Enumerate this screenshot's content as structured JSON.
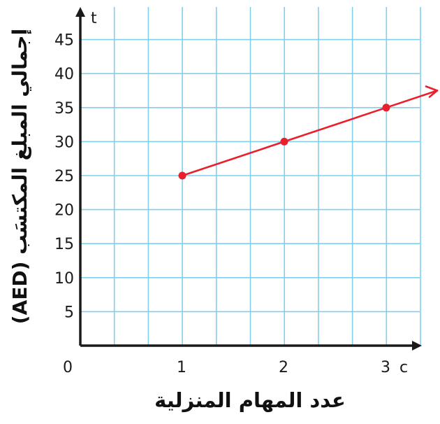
{
  "colors": {
    "grid": "#7fd0ef",
    "axis": "#1a1a1a",
    "series": "#e8202e"
  },
  "chart_data": {
    "type": "line",
    "xlabel": "عدد المهام المنزلية",
    "ylabel": "إجمالي المبلغ المكتسَب (AED)",
    "x_var": "c",
    "y_var": "t",
    "origin_label": "0",
    "x_ticks": [
      1,
      2,
      3
    ],
    "y_ticks": [
      5,
      10,
      15,
      20,
      25,
      30,
      35,
      40,
      45
    ],
    "xlim": [
      0,
      3.3
    ],
    "ylim": [
      0,
      50
    ],
    "grid": true,
    "series": [
      {
        "points": [
          {
            "x": 1,
            "y": 25
          },
          {
            "x": 2,
            "y": 30
          },
          {
            "x": 3,
            "y": 35
          }
        ],
        "extends_right_with_arrow": true
      }
    ]
  }
}
